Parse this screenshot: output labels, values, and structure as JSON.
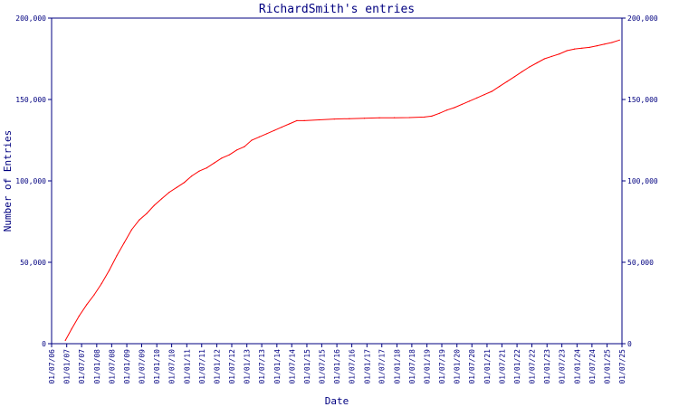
{
  "chart_data": {
    "type": "line",
    "title": "RichardSmith's entries",
    "xlabel": "Date",
    "ylabel": "Number of Entries",
    "ylim": [
      0,
      200000
    ],
    "yticks": [
      0,
      50000,
      100000,
      150000,
      200000
    ],
    "ytick_labels": [
      "0",
      "50,000",
      "100,000",
      "150,000",
      "200,000"
    ],
    "xlim": [
      "2006-07-01",
      "2025-07-01"
    ],
    "xtick_labels": [
      "01/07/06",
      "01/01/07",
      "01/07/07",
      "01/01/08",
      "01/07/08",
      "01/01/09",
      "01/07/09",
      "01/01/10",
      "01/07/10",
      "01/01/11",
      "01/07/11",
      "01/01/12",
      "01/07/12",
      "01/01/13",
      "01/07/13",
      "01/01/14",
      "01/07/14",
      "01/01/15",
      "01/07/15",
      "01/01/16",
      "01/07/16",
      "01/01/17",
      "01/07/17",
      "01/01/18",
      "01/07/18",
      "01/01/19",
      "01/07/19",
      "01/01/20",
      "01/07/20",
      "01/01/21",
      "01/07/21",
      "01/01/22",
      "01/07/22",
      "01/01/23",
      "01/07/23",
      "01/01/24",
      "01/07/24",
      "01/01/25",
      "01/07/25"
    ],
    "grid": false,
    "color": "#ff0000",
    "series": [
      {
        "x": [
          "2006-12-15",
          "2007-03-01",
          "2007-06-01",
          "2007-09-01",
          "2007-12-01",
          "2008-03-01",
          "2008-06-01",
          "2008-09-01",
          "2008-12-01",
          "2009-03-01",
          "2009-06-01",
          "2009-09-01",
          "2009-12-01",
          "2010-03-01",
          "2010-06-01",
          "2010-09-01",
          "2010-12-01",
          "2011-03-01",
          "2011-06-01",
          "2011-09-01",
          "2011-12-01",
          "2012-03-01",
          "2012-06-01",
          "2012-09-01",
          "2012-12-01",
          "2013-03-01",
          "2013-06-01",
          "2013-09-01",
          "2013-12-01",
          "2014-03-01",
          "2014-06-01",
          "2014-09-01",
          "2014-12-01",
          "2015-06-01",
          "2015-12-01",
          "2016-06-01",
          "2016-12-01",
          "2017-06-01",
          "2017-12-01",
          "2018-06-01",
          "2018-12-01",
          "2019-03-01",
          "2019-06-01",
          "2019-09-01",
          "2019-12-01",
          "2020-03-01",
          "2020-06-01",
          "2020-09-01",
          "2020-12-01",
          "2021-03-01",
          "2021-06-01",
          "2021-09-01",
          "2021-12-01",
          "2022-03-01",
          "2022-06-01",
          "2022-09-01",
          "2022-12-01",
          "2023-03-01",
          "2023-06-01",
          "2023-09-01",
          "2023-12-01",
          "2024-03-01",
          "2024-06-01",
          "2024-09-01",
          "2024-12-01",
          "2025-03-01",
          "2025-06-01"
        ],
        "values": [
          2000,
          9000,
          17000,
          24000,
          30000,
          37000,
          45000,
          54000,
          62000,
          70000,
          76000,
          80000,
          85000,
          89000,
          93000,
          96000,
          99000,
          103000,
          106000,
          108000,
          111000,
          114000,
          116000,
          119000,
          121000,
          125000,
          127000,
          129000,
          131000,
          133000,
          135000,
          137000,
          137000,
          137500,
          138000,
          138200,
          138500,
          138700,
          138800,
          138900,
          139200,
          139800,
          141500,
          143500,
          145000,
          147000,
          149000,
          151000,
          153000,
          155000,
          158000,
          161000,
          164000,
          167000,
          170000,
          172500,
          175000,
          176500,
          178000,
          180000,
          181000,
          181500,
          182000,
          183000,
          184000,
          185000,
          186500
        ]
      }
    ]
  }
}
